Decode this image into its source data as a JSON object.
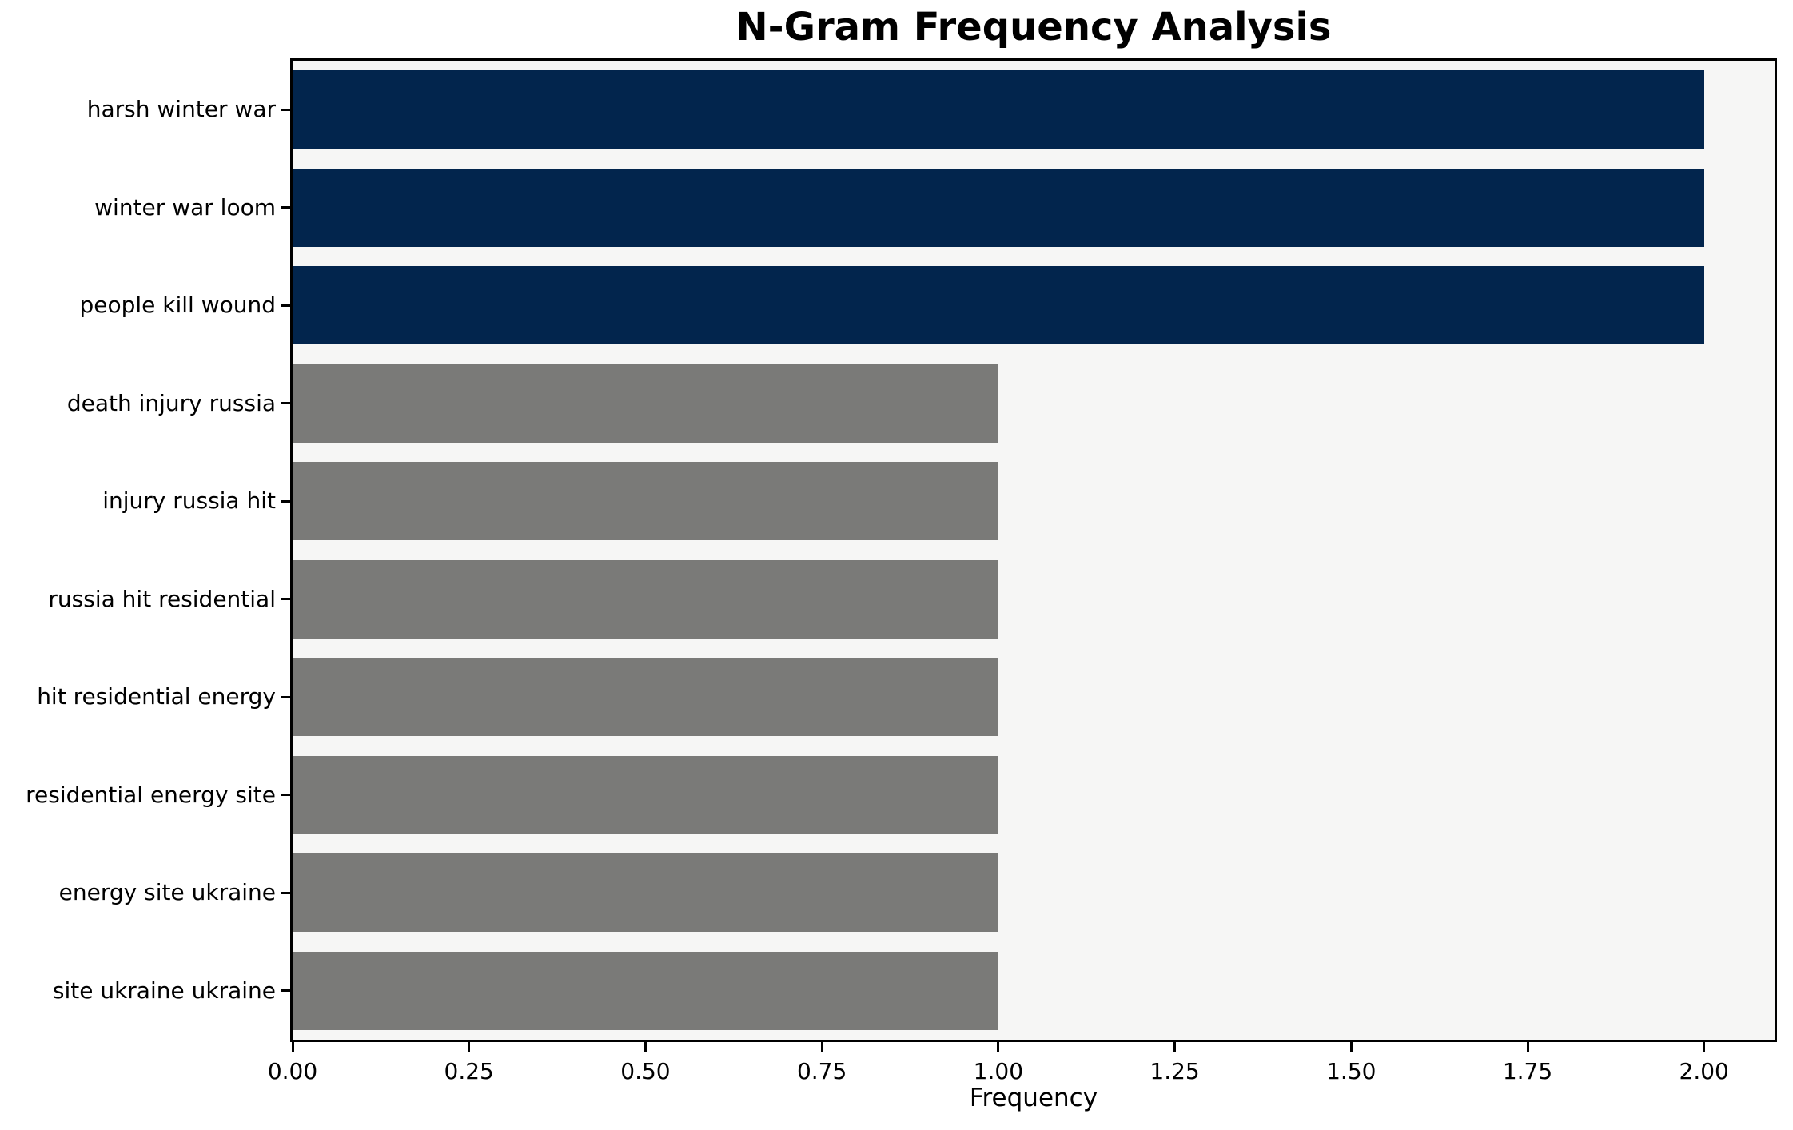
{
  "chart_data": {
    "type": "bar",
    "orientation": "horizontal",
    "title": "N-Gram Frequency Analysis",
    "xlabel": "Frequency",
    "ylabel": "",
    "categories": [
      "harsh winter war",
      "winter war loom",
      "people kill wound",
      "death injury russia",
      "injury russia hit",
      "russia hit residential",
      "hit residential energy",
      "residential energy site",
      "energy site ukraine",
      "site ukraine ukraine"
    ],
    "values": [
      2,
      2,
      2,
      1,
      1,
      1,
      1,
      1,
      1,
      1
    ],
    "bar_colors": [
      "#02254d",
      "#02254d",
      "#02254d",
      "#7a7a78",
      "#7a7a78",
      "#7a7a78",
      "#7a7a78",
      "#7a7a78",
      "#7a7a78",
      "#7a7a78"
    ],
    "xlim": [
      0,
      2.1
    ],
    "xticks": [
      0,
      0.25,
      0.5,
      0.75,
      1.0,
      1.25,
      1.5,
      1.75,
      2.0
    ],
    "xtick_labels": [
      "0.00",
      "0.25",
      "0.50",
      "0.75",
      "1.00",
      "1.25",
      "1.50",
      "1.75",
      "2.00"
    ],
    "grid": false,
    "legend": null,
    "colors": {
      "highlight_bar": "#02254d",
      "default_bar": "#7a7a78",
      "plot_background": "#f6f6f5",
      "figure_background": "#ffffff",
      "axis": "#000000",
      "text": "#000000"
    }
  }
}
